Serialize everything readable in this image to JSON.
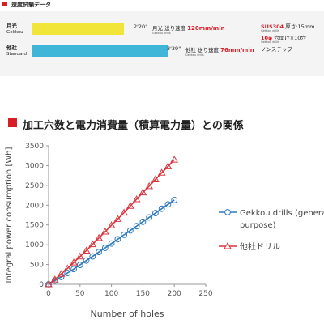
{
  "speed_test": {
    "title": "速度試験データ",
    "rows": [
      {
        "name": "月光",
        "subname": "Gekkou",
        "time": "2'20\"",
        "speed_label": "月光 送り速度",
        "speed_value": "120mm/min",
        "bar_fraction": 0.327,
        "bar_color": "#f2e53a",
        "note": "Gekkou drills",
        "conditions": [
          {
            "red": "SUS304",
            "black": " 厚さ:15mm"
          },
          {
            "red": "10φ",
            "black": " 穴開け×10穴"
          }
        ]
      },
      {
        "name": "他社",
        "subname": "Standard",
        "time": "3'39\"",
        "speed_label": "他社 送り速度",
        "speed_value": "76mm/min",
        "bar_fraction": 0.48,
        "bar_color": "#3fb5d8",
        "note": "Gekkou drills",
        "conditions": [
          {
            "red": "",
            "black": "ノンステップ"
          }
        ]
      }
    ],
    "condition_notes": [
      "Gekkou drills",
      "Gekkou drills"
    ]
  },
  "section_title": "加工穴数と電力消費量（積算電力量）との関係",
  "colors": {
    "accent": "#d81f26",
    "gekkou_line": "#2e7bbd",
    "other_line": "#d9363e"
  },
  "chart_data": {
    "type": "line",
    "title": "",
    "xlabel": "Number of holes",
    "ylabel": "Integral power consumption [Wh]",
    "xlim": [
      0,
      250
    ],
    "ylim": [
      0,
      3500
    ],
    "xticks": [
      0,
      50,
      100,
      150,
      200,
      250
    ],
    "yticks": [
      0,
      500,
      1000,
      1500,
      2000,
      2500,
      3000,
      3500
    ],
    "grid": false,
    "legend_position": "right",
    "series": [
      {
        "name": "Gekkou drills (general-purpose)",
        "legend_lines": [
          "Gekkou drills (general-",
          "purpose)"
        ],
        "marker": "circle",
        "color": "#2e7bbd",
        "x": [
          0,
          10,
          20,
          30,
          40,
          50,
          60,
          70,
          80,
          90,
          100,
          110,
          120,
          130,
          140,
          150,
          160,
          170,
          180,
          190,
          200
        ],
        "y": [
          0,
          90,
          185,
          285,
          385,
          490,
          600,
          705,
          815,
          920,
          1030,
          1140,
          1250,
          1360,
          1470,
          1580,
          1690,
          1800,
          1910,
          2020,
          2130
        ]
      },
      {
        "name": "他社ドリル",
        "legend_lines": [
          "他社ドリル"
        ],
        "marker": "triangle",
        "color": "#d9363e",
        "x": [
          0,
          10,
          20,
          30,
          40,
          50,
          60,
          70,
          80,
          90,
          100,
          110,
          120,
          130,
          140,
          150,
          160,
          170,
          180,
          190,
          200
        ],
        "y": [
          0,
          120,
          260,
          400,
          550,
          700,
          850,
          1010,
          1170,
          1330,
          1490,
          1650,
          1810,
          1980,
          2150,
          2320,
          2480,
          2650,
          2820,
          2980,
          3150
        ]
      }
    ]
  }
}
